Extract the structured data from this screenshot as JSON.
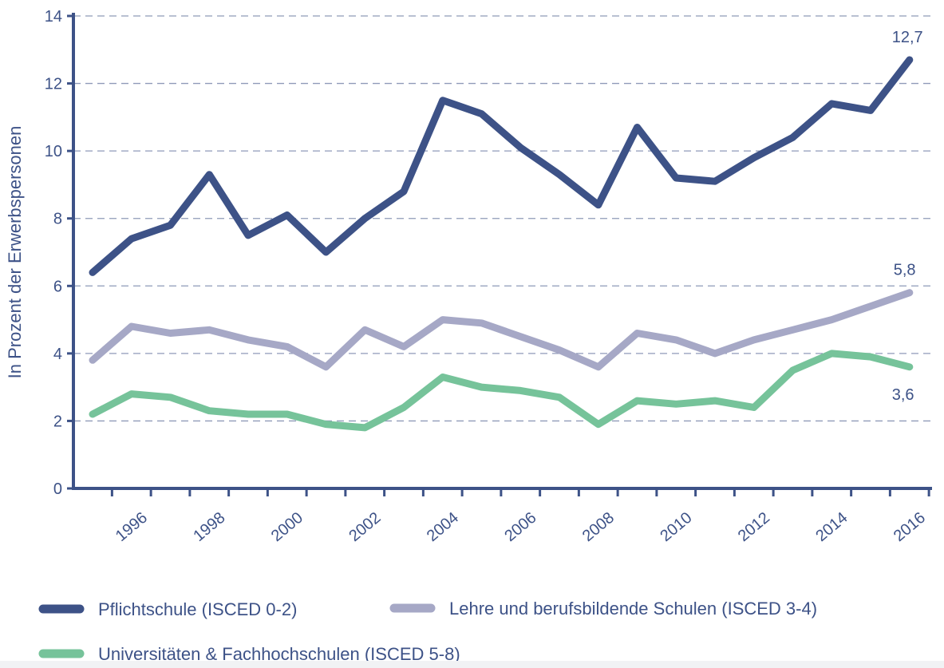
{
  "chart_data": {
    "type": "line",
    "ylabel": "In Prozent der Erwerbspersonen",
    "xlabel": "",
    "ylim": [
      0,
      14
    ],
    "yticks": [
      0,
      2,
      4,
      6,
      8,
      10,
      12,
      14
    ],
    "x": [
      1995,
      1996,
      1997,
      1998,
      1999,
      2000,
      2001,
      2002,
      2003,
      2004,
      2005,
      2006,
      2007,
      2008,
      2009,
      2010,
      2011,
      2012,
      2013,
      2014,
      2015,
      2016
    ],
    "xtick_labels": [
      "1996",
      "1998",
      "2000",
      "2002",
      "2004",
      "2006",
      "2008",
      "2010",
      "2012",
      "2014",
      "2016"
    ],
    "grid": "horizontal dashed",
    "legend_position": "bottom",
    "series": [
      {
        "name": "Pflichtschule (ISCED 0-2)",
        "color": "#3d5287",
        "values": [
          6.4,
          7.4,
          7.8,
          9.3,
          7.5,
          8.1,
          7.0,
          8.0,
          8.8,
          11.5,
          11.1,
          10.1,
          9.3,
          8.4,
          10.7,
          9.2,
          9.1,
          9.8,
          10.4,
          11.4,
          11.2,
          12.7
        ],
        "end_label": "12,7"
      },
      {
        "name": "Lehre und berufsbildende Schulen (ISCED 3-4)",
        "color": "#a6a8c6",
        "values": [
          3.8,
          4.8,
          4.6,
          4.7,
          4.4,
          4.2,
          3.6,
          4.7,
          4.2,
          5.0,
          4.9,
          4.5,
          4.1,
          3.6,
          4.6,
          4.4,
          4.0,
          4.4,
          4.7,
          5.0,
          5.4,
          5.8
        ],
        "end_label": "5,8"
      },
      {
        "name": "Universitäten & Fachhochschulen (ISCED 5-8)",
        "color": "#76c39a",
        "values": [
          2.2,
          2.8,
          2.7,
          2.3,
          2.2,
          2.2,
          1.9,
          1.8,
          2.4,
          3.3,
          3.0,
          2.9,
          2.7,
          1.9,
          2.6,
          2.5,
          2.6,
          2.4,
          3.5,
          4.0,
          3.9,
          3.6
        ],
        "end_label": "3,6"
      }
    ]
  }
}
